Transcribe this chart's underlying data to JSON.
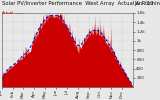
{
  "title": "Solar PV/Inverter Performance  West Array  Actual & Running Average Power Output",
  "date_label": "Jan  '13",
  "bg_color": "#e8e8e8",
  "plot_bg_color": "#e8e8e8",
  "grid_color": "#aaaaaa",
  "bar_color": "#cc0000",
  "avg_line_color": "#0000cc",
  "ylim": [
    0,
    1600
  ],
  "ytick_values": [
    200,
    400,
    600,
    800,
    1000,
    1200,
    1400,
    1600
  ],
  "ytick_labels": [
    "200",
    "400",
    "600",
    "800",
    "1k",
    "1.2k",
    "1.4k",
    "1.6k"
  ],
  "n_points": 365,
  "title_fontsize": 3.8,
  "axis_fontsize": 3.0
}
